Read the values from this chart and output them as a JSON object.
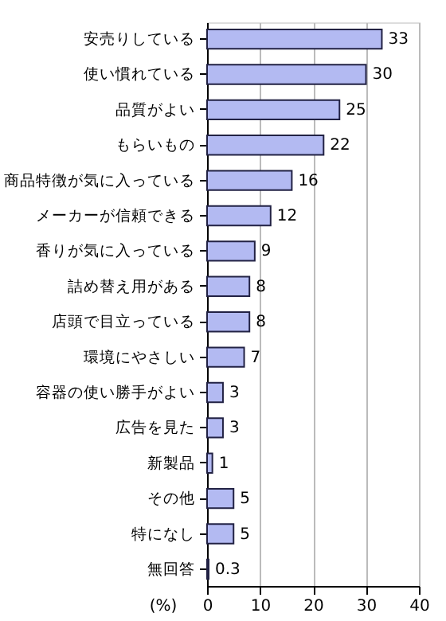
{
  "chart_data": {
    "type": "bar",
    "orientation": "horizontal",
    "xlabel": "(%)",
    "categories": [
      "安売りしている",
      "使い慣れている",
      "品質がよい",
      "もらいもの",
      "商品特徴が気に入っている",
      "メーカーが信頼できる",
      "香りが気に入っている",
      "詰め替え用がある",
      "店頭で目立っている",
      "環境にやさしい",
      "容器の使い勝手がよい",
      "広告を見た",
      "新製品",
      "その他",
      "特になし",
      "無回答"
    ],
    "values": [
      33,
      30,
      25,
      22,
      16,
      12,
      9,
      8,
      8,
      7,
      3,
      3,
      1,
      5,
      5,
      0.3
    ],
    "color": "#b3baf2",
    "xlim": [
      0,
      40
    ],
    "xticks": [
      0,
      10,
      20,
      30,
      40
    ],
    "grid": "x",
    "data_labels": true
  }
}
